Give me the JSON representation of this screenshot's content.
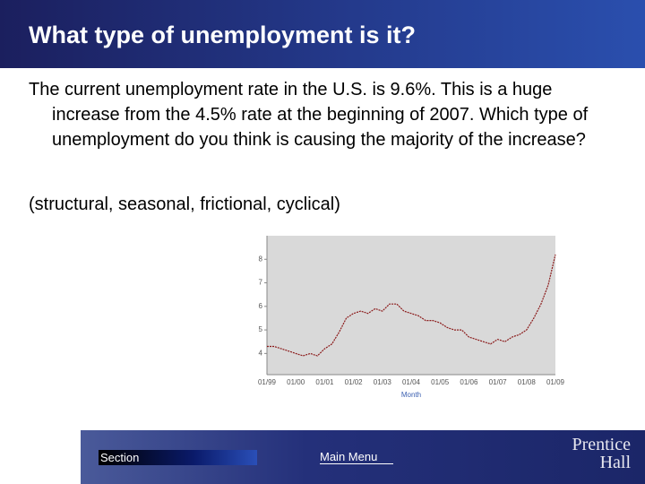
{
  "header": {
    "title": "What type of unemployment is it?"
  },
  "body": {
    "paragraphs": [
      "The current unemployment rate in the U.S. is 9.6%.  This is a huge increase from the 4.5% rate at the beginning of 2007.  Which type of unemployment do you think is causing the majority of the increase?",
      "(structural, seasonal, frictional, cyclical)"
    ]
  },
  "chart_data": {
    "type": "line",
    "x_label": "Month",
    "categories": [
      "01/99",
      null,
      null,
      null,
      "01/00",
      null,
      null,
      null,
      "01/01",
      null,
      null,
      null,
      "01/02",
      null,
      null,
      null,
      "01/03",
      null,
      null,
      null,
      "01/04",
      null,
      null,
      null,
      "01/05",
      null,
      null,
      null,
      "01/06",
      null,
      null,
      null,
      "01/07",
      null,
      null,
      null,
      "01/08",
      null,
      null,
      null,
      "01/09"
    ],
    "values": [
      4.3,
      4.3,
      4.2,
      4.1,
      4.0,
      3.9,
      4.0,
      3.9,
      4.2,
      4.4,
      4.9,
      5.5,
      5.7,
      5.8,
      5.7,
      5.9,
      5.8,
      6.1,
      6.1,
      5.8,
      5.7,
      5.6,
      5.4,
      5.4,
      5.3,
      5.1,
      5.0,
      5.0,
      4.7,
      4.6,
      4.5,
      4.4,
      4.6,
      4.5,
      4.7,
      4.8,
      5.0,
      5.5,
      6.1,
      6.9,
      8.2
    ],
    "color": "#8b1a1a",
    "ylim": [
      3.1,
      9.0
    ],
    "yticks": [
      4,
      5,
      6,
      7,
      8
    ]
  },
  "footer": {
    "section": "Section",
    "main_menu": "Main Menu",
    "logo": [
      "Prentice",
      "Hall"
    ]
  }
}
